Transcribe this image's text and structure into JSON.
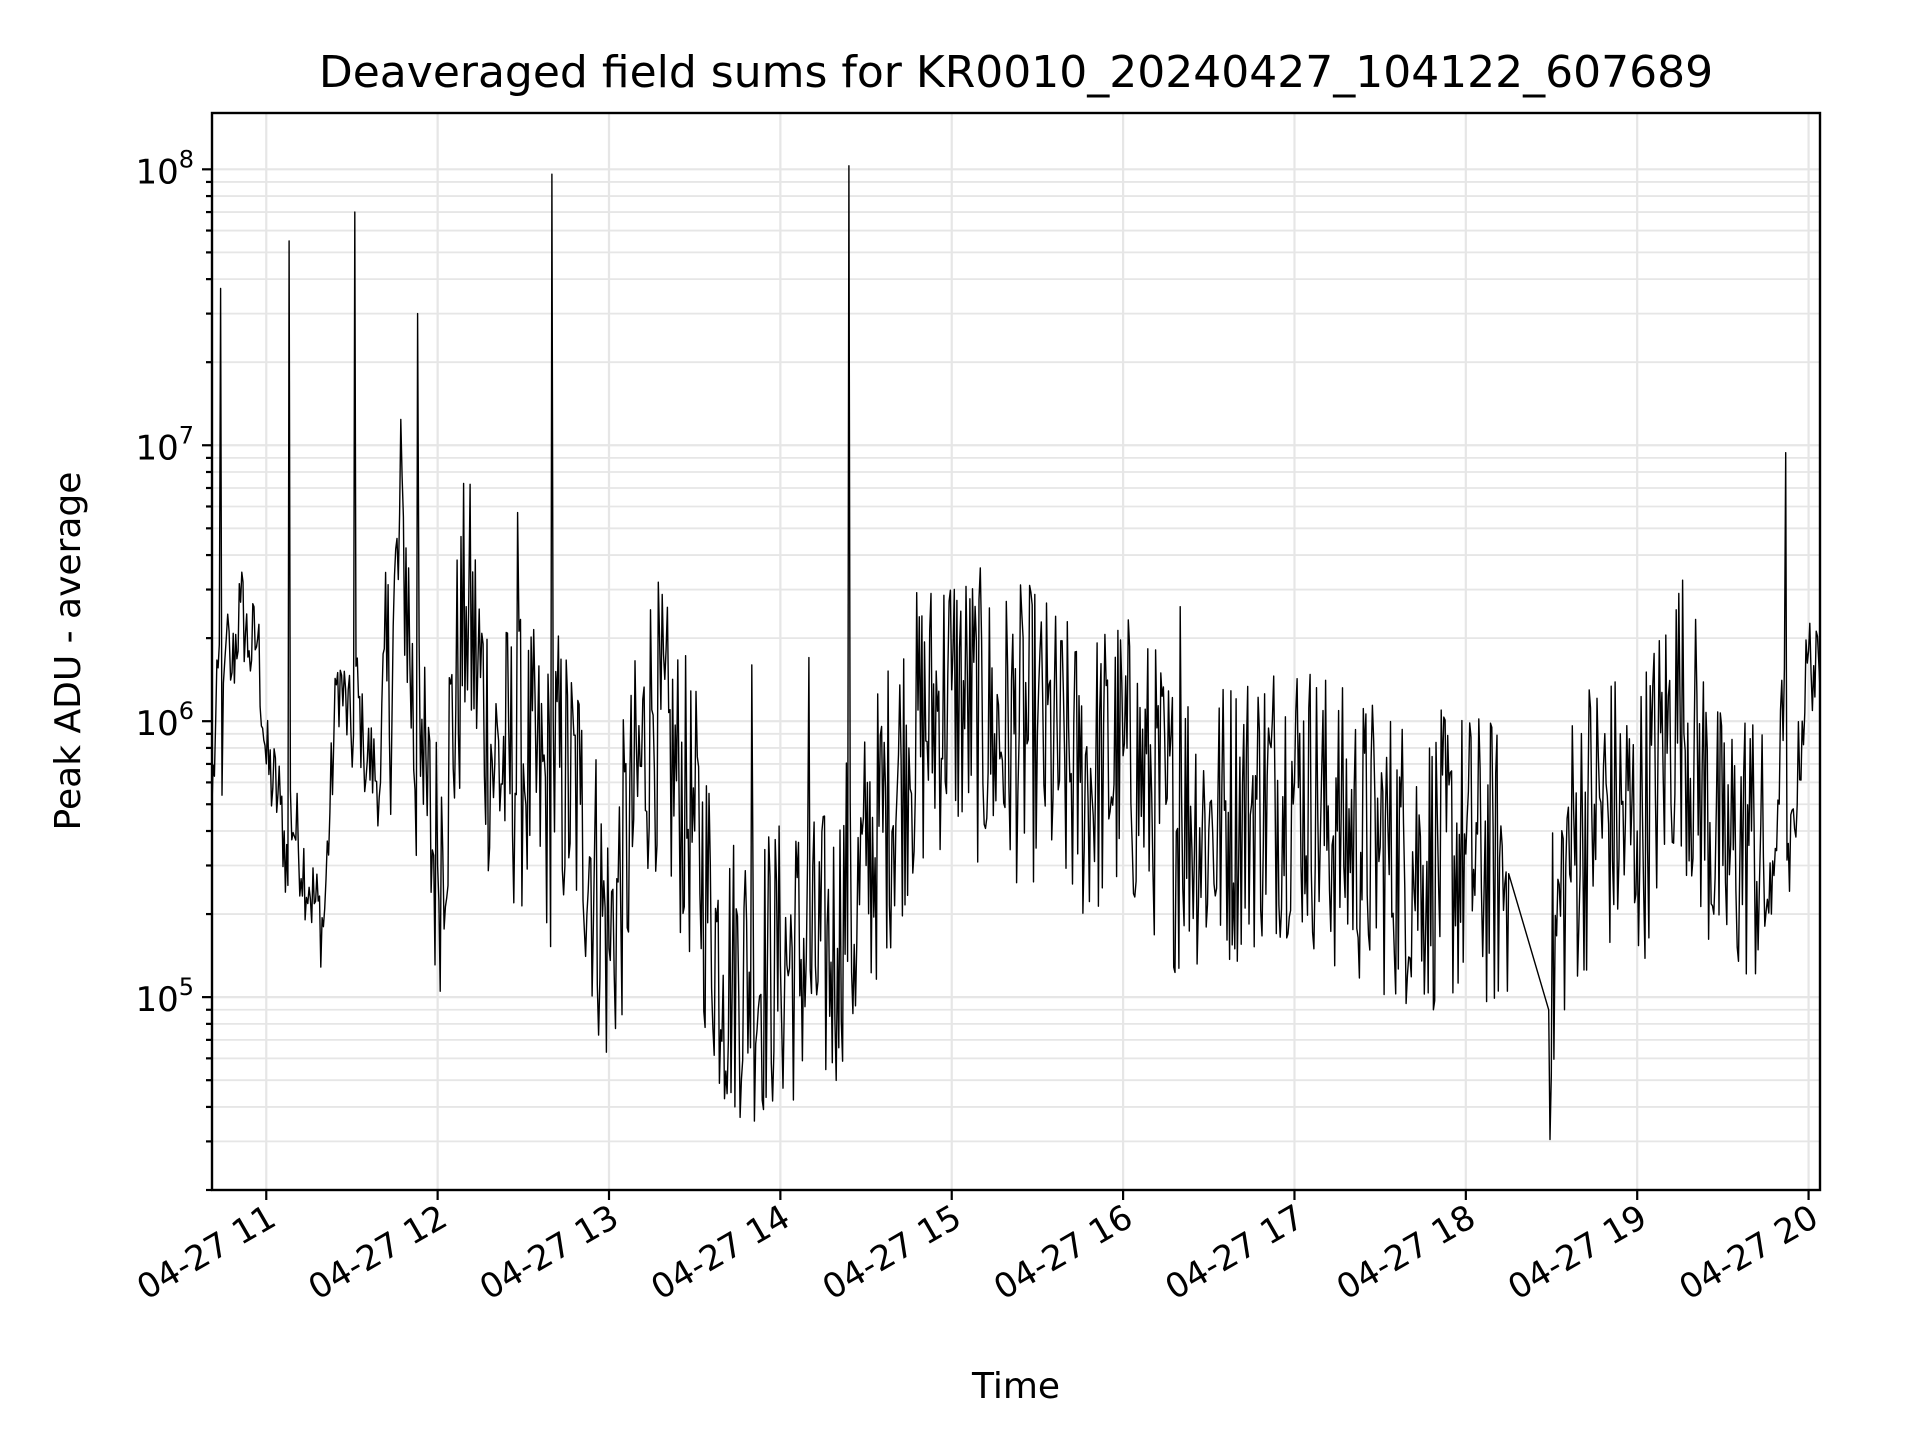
{
  "chart_data": {
    "type": "line",
    "title": "Deaveraged field sums for KR0010_20240427_104122_607689",
    "xlabel": "Time",
    "ylabel": "Peak ADU - average",
    "yscale": "log",
    "grid": true,
    "ylim": [
      20000,
      160000000
    ],
    "xlim": [
      "2024-04-27 10:41",
      "2024-04-27 20:04"
    ],
    "x_ticks": [
      {
        "x": "2024-04-27 11:00",
        "label": "04-27 11"
      },
      {
        "x": "2024-04-27 12:00",
        "label": "04-27 12"
      },
      {
        "x": "2024-04-27 13:00",
        "label": "04-27 13"
      },
      {
        "x": "2024-04-27 14:00",
        "label": "04-27 14"
      },
      {
        "x": "2024-04-27 15:00",
        "label": "04-27 15"
      },
      {
        "x": "2024-04-27 16:00",
        "label": "04-27 16"
      },
      {
        "x": "2024-04-27 17:00",
        "label": "04-27 17"
      },
      {
        "x": "2024-04-27 18:00",
        "label": "04-27 18"
      },
      {
        "x": "2024-04-27 19:00",
        "label": "04-27 19"
      },
      {
        "x": "2024-04-27 20:00",
        "label": "04-27 20"
      }
    ],
    "y_ticks": [
      {
        "y": 100000,
        "base": "10",
        "exp": "5"
      },
      {
        "y": 1000000,
        "base": "10",
        "exp": "6"
      },
      {
        "y": 10000000,
        "base": "10",
        "exp": "7"
      },
      {
        "y": 100000000,
        "base": "10",
        "exp": "8"
      }
    ],
    "series": [
      {
        "color": "#000000",
        "x": [
          "2024-04-27 10:41",
          "2024-04-27 10:44",
          "2024-04-27 10:46",
          "2024-04-27 10:48",
          "2024-04-27 10:51",
          "2024-04-27 10:54",
          "2024-04-27 10:57",
          "2024-04-27 11:00",
          "2024-04-27 11:05",
          "2024-04-27 11:08",
          "2024-04-27 11:15",
          "2024-04-27 11:20",
          "2024-04-27 11:25",
          "2024-04-27 11:31",
          "2024-04-27 11:34",
          "2024-04-27 11:40",
          "2024-04-27 11:48",
          "2024-04-27 11:53",
          "2024-04-27 11:55",
          "2024-04-27 12:00",
          "2024-04-27 12:10",
          "2024-04-27 12:20",
          "2024-04-27 12:28",
          "2024-04-27 12:30",
          "2024-04-27 12:40",
          "2024-04-27 12:50",
          "2024-04-27 13:00",
          "2024-04-27 13:15",
          "2024-04-27 13:30",
          "2024-04-27 13:40",
          "2024-04-27 13:50",
          "2024-04-27 14:00",
          "2024-04-27 14:10",
          "2024-04-27 14:20",
          "2024-04-27 14:24",
          "2024-04-27 14:30",
          "2024-04-27 14:45",
          "2024-04-27 15:00",
          "2024-04-27 15:15",
          "2024-04-27 15:30",
          "2024-04-27 15:45",
          "2024-04-27 16:00",
          "2024-04-27 16:15",
          "2024-04-27 16:20",
          "2024-04-27 16:30",
          "2024-04-27 16:45",
          "2024-04-27 17:00",
          "2024-04-27 17:15",
          "2024-04-27 17:30",
          "2024-04-27 17:45",
          "2024-04-27 18:00",
          "2024-04-27 18:15",
          "2024-04-27 18:29",
          "2024-04-27 18:35",
          "2024-04-27 18:45",
          "2024-04-27 19:00",
          "2024-04-27 19:15",
          "2024-04-27 19:30",
          "2024-04-27 19:40",
          "2024-04-27 19:47",
          "2024-04-27 19:52",
          "2024-04-27 20:00",
          "2024-04-27 20:04"
        ],
        "y": [
          500000,
          37000000,
          2000000,
          1500000,
          2700000,
          1800000,
          2000000,
          700000,
          500000,
          55000000,
          250000,
          180000,
          1500000,
          70000000,
          800000,
          600000,
          5500000,
          30000000,
          500000,
          300000,
          2600000,
          700000,
          5700000,
          700000,
          96000000,
          500000,
          150000,
          1100000,
          400000,
          120000,
          1600000,
          130000,
          1700000,
          150000,
          103000000,
          300000,
          800000,
          1300000,
          900000,
          900000,
          600000,
          750000,
          500000,
          2600000,
          400000,
          500000,
          600000,
          400000,
          350000,
          300000,
          330000,
          280000,
          90000,
          300000,
          500000,
          400000,
          1200000,
          300000,
          400000,
          200000,
          9400000,
          1800000,
          1300000
        ]
      }
    ]
  }
}
